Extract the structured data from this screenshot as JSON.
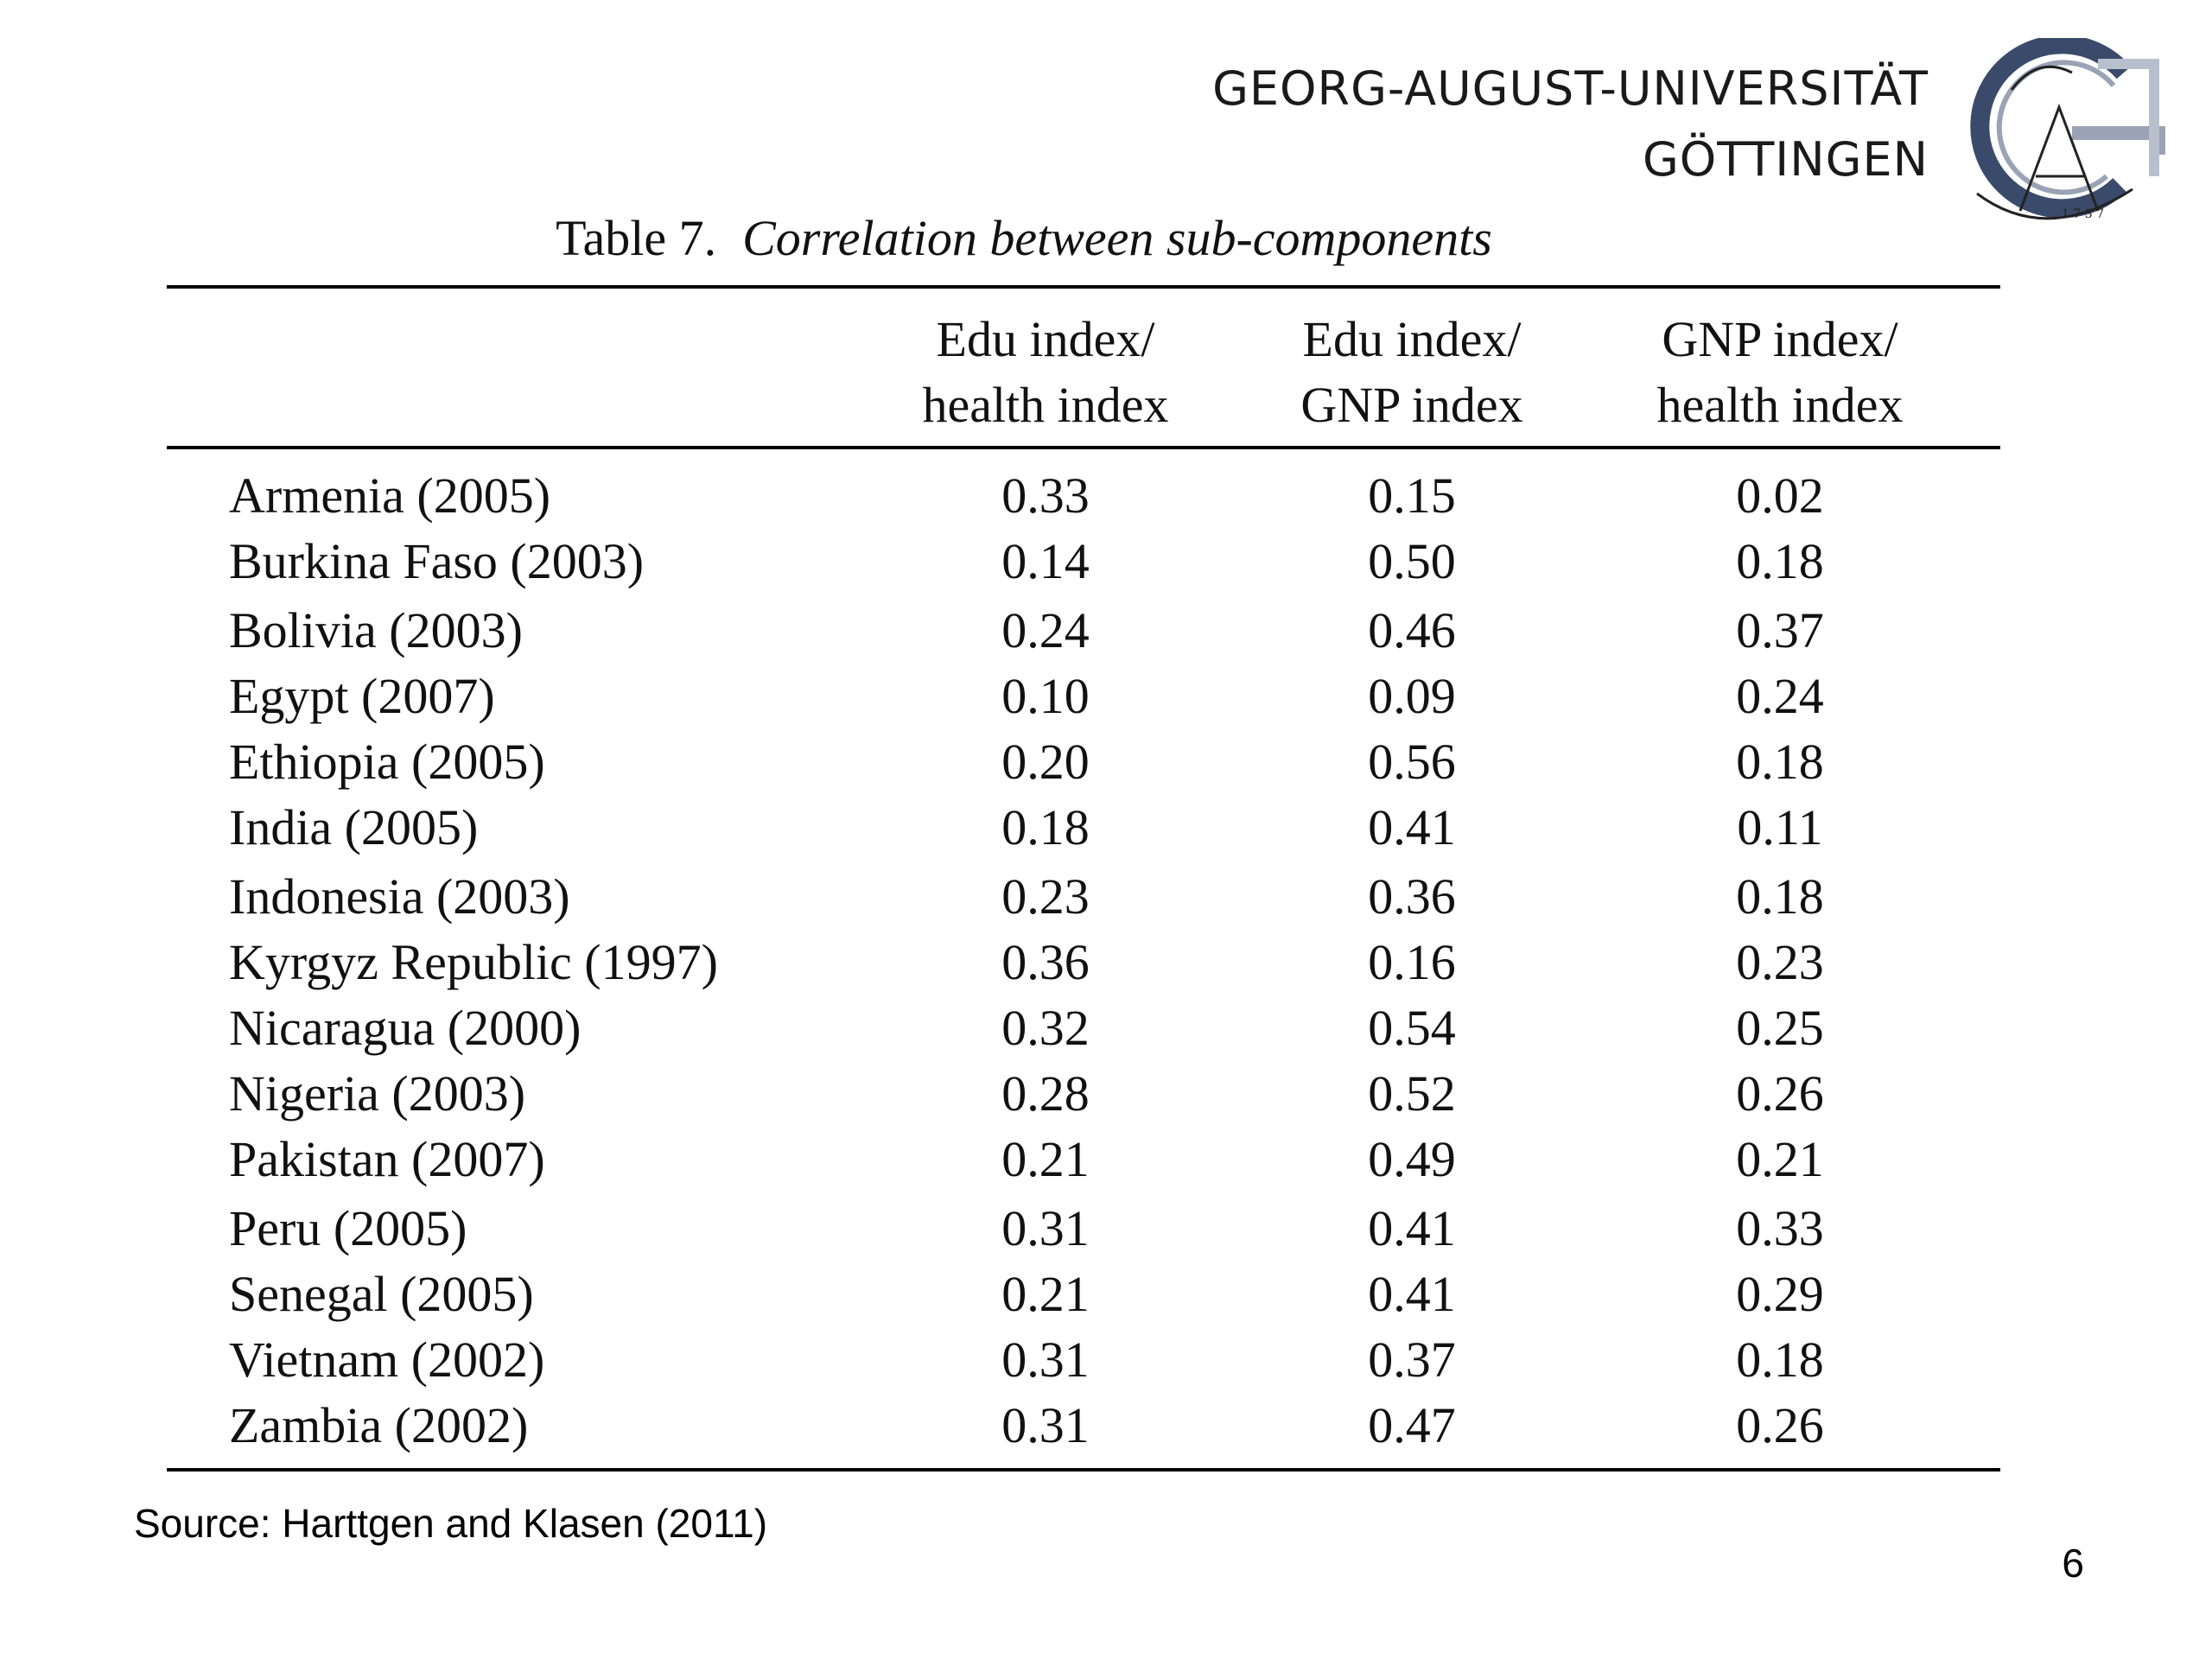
{
  "header": {
    "university_line1": "GEORG-AUGUST-UNIVERSITÄT",
    "university_line2": "GÖTTINGEN",
    "logo_icon": "goettingen-university-seal-icon"
  },
  "table": {
    "number": "Table 7.",
    "caption": "Correlation between sub-components",
    "columns": [
      {
        "line1": "Edu index/",
        "line2": "health index"
      },
      {
        "line1": "Edu index/",
        "line2": "GNP index"
      },
      {
        "line1": "GNP index/",
        "line2": "health index"
      }
    ],
    "rows": [
      {
        "country": "Armenia (2005)",
        "values": [
          "0.33",
          "0.15",
          "0.02"
        ]
      },
      {
        "country": "Burkina Faso (2003)",
        "values": [
          "0.14",
          "0.50",
          "0.18"
        ]
      },
      {
        "country": "Bolivia (2003)",
        "values": [
          "0.24",
          "0.46",
          "0.37"
        ]
      },
      {
        "country": "Egypt (2007)",
        "values": [
          "0.10",
          "0.09",
          "0.24"
        ]
      },
      {
        "country": "Ethiopia (2005)",
        "values": [
          "0.20",
          "0.56",
          "0.18"
        ]
      },
      {
        "country": "India (2005)",
        "values": [
          "0.18",
          "0.41",
          "0.11"
        ]
      },
      {
        "country": "Indonesia (2003)",
        "values": [
          "0.23",
          "0.36",
          "0.18"
        ]
      },
      {
        "country": "Kyrgyz Republic (1997)",
        "values": [
          "0.36",
          "0.16",
          "0.23"
        ]
      },
      {
        "country": "Nicaragua (2000)",
        "values": [
          "0.32",
          "0.54",
          "0.25"
        ]
      },
      {
        "country": "Nigeria (2003)",
        "values": [
          "0.28",
          "0.52",
          "0.26"
        ]
      },
      {
        "country": "Pakistan (2007)",
        "values": [
          "0.21",
          "0.49",
          "0.21"
        ]
      },
      {
        "country": "Peru (2005)",
        "values": [
          "0.31",
          "0.41",
          "0.33"
        ]
      },
      {
        "country": "Senegal (2005)",
        "values": [
          "0.21",
          "0.41",
          "0.29"
        ]
      },
      {
        "country": "Vietnam (2002)",
        "values": [
          "0.31",
          "0.37",
          "0.18"
        ]
      },
      {
        "country": "Zambia (2002)",
        "values": [
          "0.31",
          "0.47",
          "0.26"
        ]
      }
    ]
  },
  "footer": {
    "source": "Source: Harttgen and Klasen (2011)",
    "page_number": "6"
  }
}
